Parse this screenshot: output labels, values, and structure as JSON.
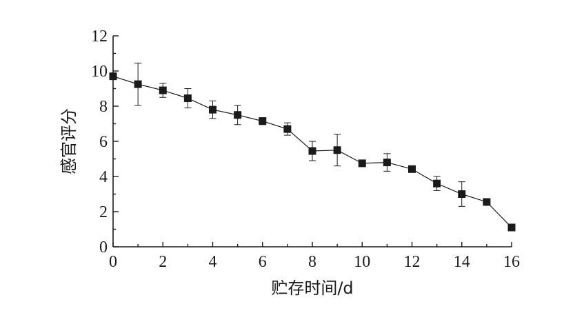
{
  "chart_data": {
    "type": "line",
    "xlabel": "贮存时间/d",
    "ylabel": "感官评分",
    "xlim": [
      0,
      16
    ],
    "ylim": [
      0,
      12
    ],
    "x_ticks": [
      0,
      2,
      4,
      6,
      8,
      10,
      12,
      14,
      16
    ],
    "y_ticks": [
      0,
      2,
      4,
      6,
      8,
      10,
      12
    ],
    "grid": false,
    "marker": "square",
    "series": [
      {
        "x": [
          0,
          1,
          2,
          3,
          4,
          5,
          6,
          7,
          8,
          9,
          10,
          11,
          12,
          13,
          14,
          15,
          16
        ],
        "y": [
          9.7,
          9.25,
          8.9,
          8.45,
          7.8,
          7.5,
          7.15,
          6.7,
          5.45,
          5.5,
          4.75,
          4.8,
          4.42,
          3.6,
          3.0,
          2.55,
          1.1
        ],
        "error": [
          0.15,
          1.2,
          0.4,
          0.55,
          0.5,
          0.55,
          0.2,
          0.35,
          0.55,
          0.9,
          0.1,
          0.5,
          0.1,
          0.4,
          0.7,
          0.1,
          0.15
        ]
      }
    ]
  }
}
